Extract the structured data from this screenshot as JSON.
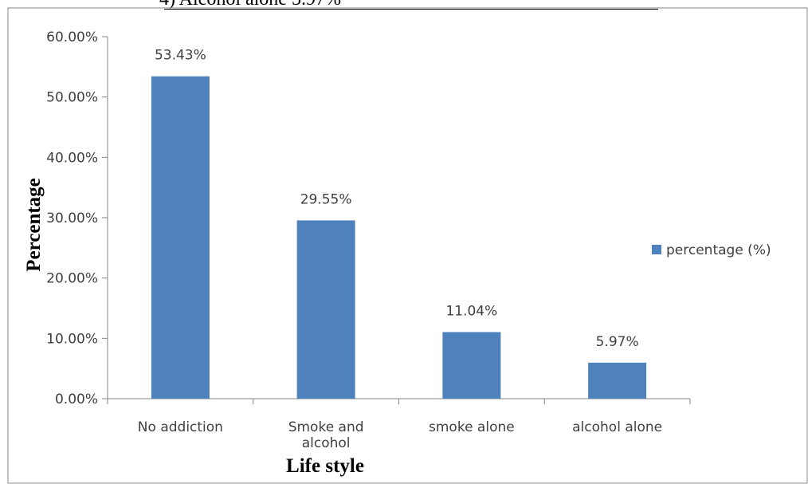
{
  "page": {
    "clipped_header_text": "4)          Alcohol alone               5.97%"
  },
  "chart_data": {
    "type": "bar",
    "categories": [
      "No addiction",
      "Smoke and alcohol",
      "smoke alone",
      "alcohol alone"
    ],
    "category_label_lines": [
      [
        "No addiction"
      ],
      [
        "Smoke and",
        "alcohol"
      ],
      [
        "smoke alone"
      ],
      [
        "alcohol alone"
      ]
    ],
    "series": [
      {
        "name": "percentage (%)",
        "values": [
          53.43,
          29.55,
          11.04,
          5.97
        ],
        "color": "#4f81bd"
      }
    ],
    "data_labels": [
      "53.43%",
      "29.55%",
      "11.04%",
      "5.97%"
    ],
    "xlabel": "Life style",
    "ylabel": "Percentage",
    "ylim": [
      0,
      60
    ],
    "yticks": [
      0,
      10,
      20,
      30,
      40,
      50,
      60
    ],
    "ytick_labels": [
      "0.00%",
      "10.00%",
      "20.00%",
      "30.00%",
      "40.00%",
      "50.00%",
      "60.00%"
    ],
    "grid": false,
    "legend": "right"
  }
}
